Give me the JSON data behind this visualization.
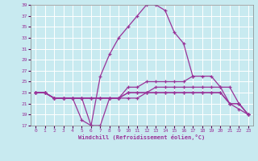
{
  "xlabel": "Windchill (Refroidissement éolien,°C)",
  "bg_color": "#c8eaf0",
  "grid_color": "#ffffff",
  "line_color": "#993399",
  "xlim": [
    -0.5,
    23.5
  ],
  "ylim": [
    17,
    39
  ],
  "yticks": [
    17,
    19,
    21,
    23,
    25,
    27,
    29,
    31,
    33,
    35,
    37,
    39
  ],
  "xticks": [
    0,
    1,
    2,
    3,
    4,
    5,
    6,
    7,
    8,
    9,
    10,
    11,
    12,
    13,
    14,
    15,
    16,
    17,
    18,
    19,
    20,
    21,
    22,
    23
  ],
  "lines": [
    {
      "x": [
        0,
        1,
        2,
        3,
        4,
        5,
        6,
        7,
        8,
        9,
        10,
        11,
        12,
        13,
        14,
        15,
        16,
        17,
        18,
        19,
        20,
        21,
        22,
        23
      ],
      "y": [
        23,
        23,
        22,
        22,
        22,
        22,
        17,
        26,
        30,
        33,
        35,
        37,
        39,
        39,
        38,
        34,
        32,
        26,
        null,
        null,
        null,
        null,
        null,
        19
      ]
    },
    {
      "x": [
        0,
        1,
        2,
        3,
        4,
        5,
        6,
        7,
        8,
        9,
        10,
        11,
        12,
        13,
        14,
        15,
        16,
        17,
        18,
        19,
        20,
        21,
        22,
        23
      ],
      "y": [
        23,
        23,
        22,
        22,
        22,
        18,
        17,
        17,
        22,
        22,
        23,
        23,
        23,
        23,
        23,
        23,
        23,
        23,
        23,
        23,
        23,
        21,
        21,
        19
      ]
    },
    {
      "x": [
        0,
        1,
        2,
        3,
        4,
        5,
        6,
        7,
        8,
        9,
        10,
        11,
        12,
        13,
        14,
        15,
        16,
        17,
        18,
        19,
        20,
        21,
        22,
        23
      ],
      "y": [
        23,
        23,
        22,
        22,
        22,
        22,
        22,
        22,
        22,
        22,
        23,
        23,
        23,
        24,
        24,
        24,
        24,
        24,
        24,
        24,
        24,
        24,
        21,
        19
      ]
    },
    {
      "x": [
        0,
        1,
        2,
        3,
        4,
        5,
        6,
        7,
        8,
        9,
        10,
        11,
        12,
        13,
        14,
        15,
        16,
        17,
        18,
        19,
        20,
        21,
        22,
        23
      ],
      "y": [
        23,
        23,
        22,
        22,
        22,
        22,
        22,
        22,
        22,
        22,
        24,
        24,
        25,
        25,
        25,
        25,
        25,
        26,
        26,
        26,
        24,
        21,
        21,
        19
      ]
    },
    {
      "x": [
        0,
        1,
        2,
        3,
        4,
        5,
        6,
        7,
        8,
        9,
        10,
        11,
        12,
        13,
        14,
        15,
        16,
        17,
        18,
        19,
        20,
        21,
        22,
        23
      ],
      "y": [
        23,
        23,
        22,
        22,
        22,
        22,
        22,
        22,
        22,
        22,
        22,
        22,
        23,
        23,
        23,
        23,
        23,
        23,
        23,
        23,
        23,
        21,
        20,
        19
      ]
    }
  ]
}
